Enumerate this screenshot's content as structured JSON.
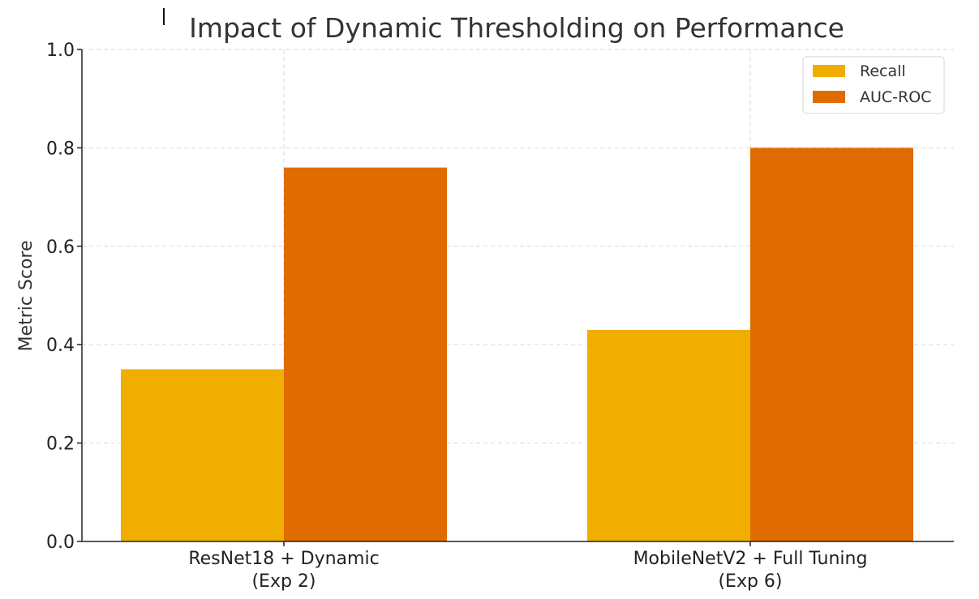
{
  "chart_data": {
    "type": "bar",
    "title": "Impact of Dynamic Thresholding on Performance",
    "xlabel": "",
    "ylabel": "Metric Score",
    "categories": [
      [
        "ResNet18 + Dynamic",
        "(Exp 2)"
      ],
      [
        "MobileNetV2 + Full Tuning",
        "(Exp 6)"
      ]
    ],
    "series": [
      {
        "name": "Recall",
        "values": [
          0.35,
          0.43
        ],
        "color": "#f0ae00"
      },
      {
        "name": "AUC-ROC",
        "values": [
          0.76,
          0.8
        ],
        "color": "#e06c00"
      }
    ],
    "ylim": [
      0,
      1.0
    ],
    "yticks": [
      "0.0",
      "0.2",
      "0.4",
      "0.6",
      "0.8",
      "1.0"
    ],
    "grid": true,
    "legend_position": "top-right"
  }
}
